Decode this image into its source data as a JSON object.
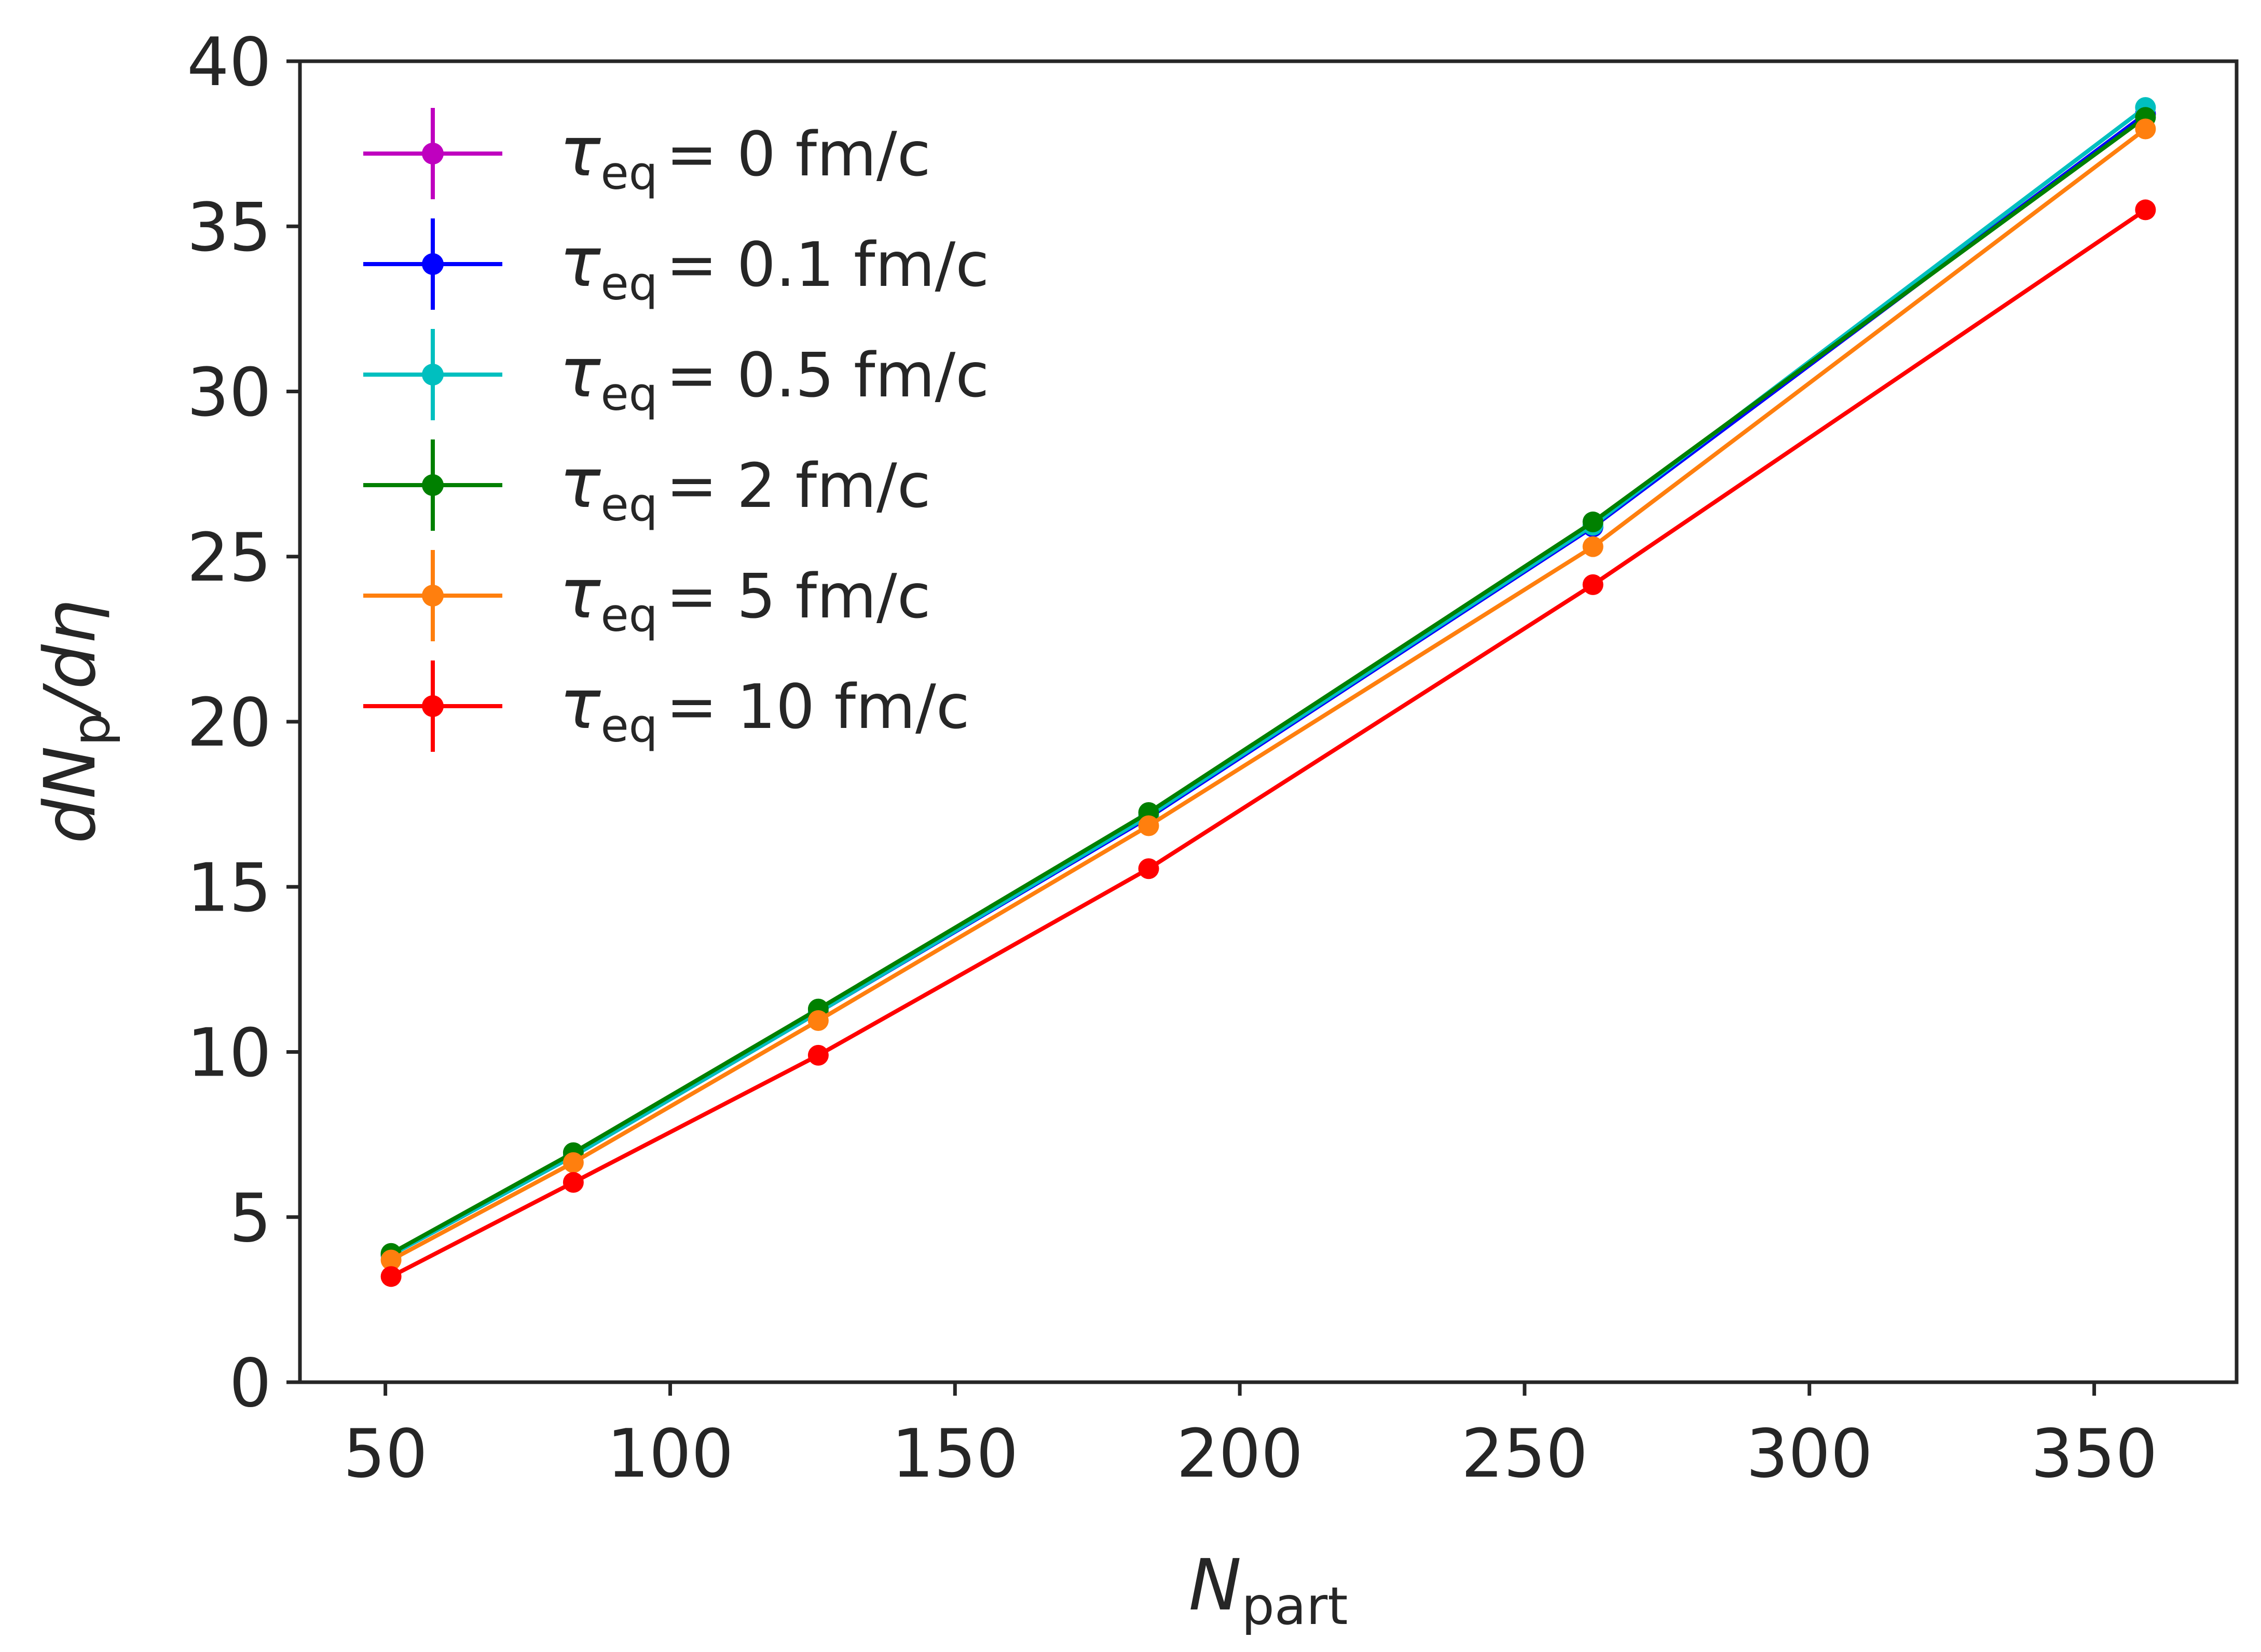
{
  "chart_data": {
    "type": "line",
    "title": "",
    "xlabel": "N",
    "xlabel_sub": "part",
    "ylabel": "dN",
    "ylabel_sub": "p",
    "ylabel_tail": "/dη",
    "xlim": [
      35,
      375
    ],
    "ylim": [
      0,
      40
    ],
    "x_ticks": [
      50,
      100,
      150,
      200,
      250,
      300,
      350
    ],
    "y_ticks": [
      0,
      5,
      10,
      15,
      20,
      25,
      30,
      35,
      40
    ],
    "grid": false,
    "legend_position": "top-left",
    "x": [
      51,
      83,
      126,
      184,
      262,
      359
    ],
    "series": [
      {
        "name": "τ_eq = 0 fm/c",
        "legend_value": "0",
        "unit": "fm/c",
        "color": "#bf00bf",
        "values": [
          3.85,
          6.85,
          11.2,
          17.1,
          25.9,
          38.4
        ]
      },
      {
        "name": "τ_eq = 0.1 fm/c",
        "legend_value": "0.1",
        "unit": "fm/c",
        "color": "#0000ff",
        "values": [
          3.85,
          6.85,
          11.2,
          17.1,
          25.9,
          38.4
        ]
      },
      {
        "name": "τ_eq = 0.5 fm/c",
        "legend_value": "0.5",
        "unit": "fm/c",
        "color": "#00bfbf",
        "values": [
          3.85,
          6.85,
          11.2,
          17.15,
          25.95,
          38.6
        ]
      },
      {
        "name": "τ_eq = 2 fm/c",
        "legend_value": "2",
        "unit": "fm/c",
        "color": "#008000",
        "values": [
          3.9,
          6.95,
          11.3,
          17.25,
          26.05,
          38.3
        ]
      },
      {
        "name": "τ_eq = 5 fm/c",
        "legend_value": "5",
        "unit": "fm/c",
        "color": "#ff7f0e",
        "values": [
          3.7,
          6.65,
          10.95,
          16.85,
          25.3,
          37.95
        ]
      },
      {
        "name": "τ_eq = 10 fm/c",
        "legend_value": "10",
        "unit": "fm/c",
        "color": "#ff0000",
        "values": [
          3.2,
          6.05,
          9.9,
          15.55,
          24.15,
          35.5
        ]
      }
    ]
  }
}
